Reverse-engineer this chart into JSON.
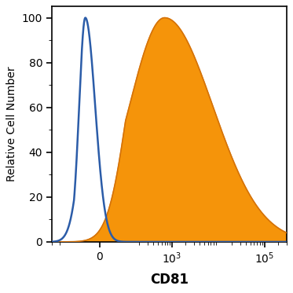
{
  "title": "",
  "xlabel": "CD81",
  "ylabel": "Relative Cell Number",
  "ylim": [
    0,
    105
  ],
  "yticks": [
    0,
    20,
    40,
    60,
    80,
    100
  ],
  "blue_color": "#2b5ca8",
  "orange_color": "#f5940a",
  "orange_edge_color": "#d4720a",
  "background_color": "#ffffff",
  "symlog_linthresh": 100,
  "symlog_linscale": 0.5,
  "xlim_min": -300,
  "xlim_max": 300000
}
